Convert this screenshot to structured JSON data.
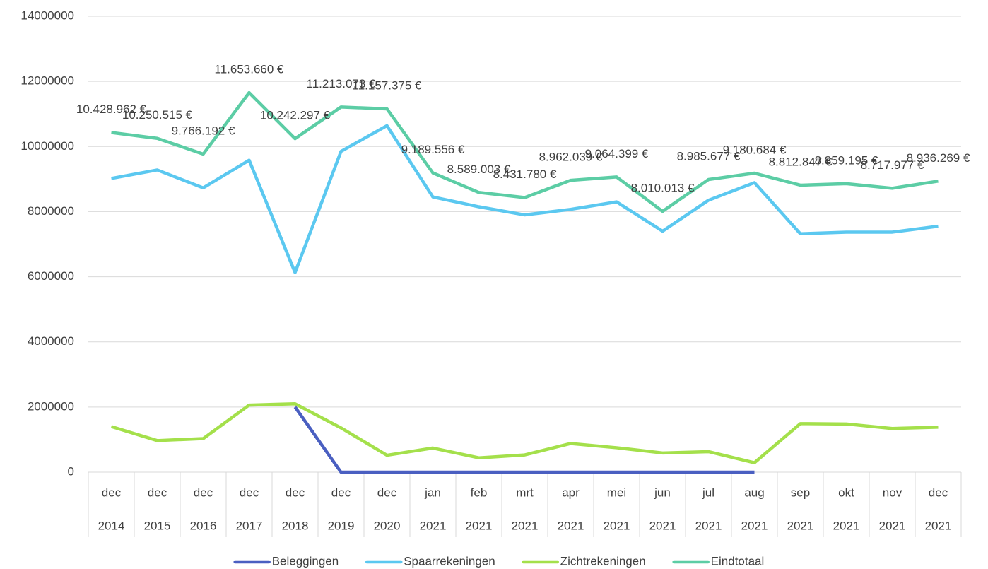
{
  "chart_data": {
    "type": "line",
    "categories": [
      [
        "dec",
        "2014"
      ],
      [
        "dec",
        "2015"
      ],
      [
        "dec",
        "2016"
      ],
      [
        "dec",
        "2017"
      ],
      [
        "dec",
        "2018"
      ],
      [
        "dec",
        "2019"
      ],
      [
        "dec",
        "2020"
      ],
      [
        "jan",
        "2021"
      ],
      [
        "feb",
        "2021"
      ],
      [
        "mrt",
        "2021"
      ],
      [
        "apr",
        "2021"
      ],
      [
        "mei",
        "2021"
      ],
      [
        "jun",
        "2021"
      ],
      [
        "jul",
        "2021"
      ],
      [
        "aug",
        "2021"
      ],
      [
        "sep",
        "2021"
      ],
      [
        "okt",
        "2021"
      ],
      [
        "nov",
        "2021"
      ],
      [
        "dec",
        "2021"
      ]
    ],
    "series": [
      {
        "name": "Beleggingen",
        "color": "#4a5fc1",
        "values": [
          null,
          null,
          null,
          null,
          2000000,
          0,
          0,
          0,
          0,
          0,
          0,
          0,
          0,
          0,
          0,
          null,
          null,
          null,
          null
        ]
      },
      {
        "name": "Spaarrekeningen",
        "color": "#5bc8f0",
        "values": [
          9020000,
          9280000,
          8730000,
          9580000,
          6130000,
          9850000,
          10640000,
          8450000,
          8150000,
          7900000,
          8070000,
          8300000,
          7400000,
          8350000,
          8890000,
          7320000,
          7370000,
          7370000,
          7550000
        ]
      },
      {
        "name": "Zichtrekeningen",
        "color": "#a4e04b",
        "values": [
          1400000,
          970000,
          1030000,
          2060000,
          2100000,
          1360000,
          520000,
          740000,
          440000,
          530000,
          880000,
          750000,
          590000,
          630000,
          290000,
          1490000,
          1480000,
          1340000,
          1380000
        ]
      },
      {
        "name": "Eindtotaal",
        "color": "#5ccda5",
        "values": [
          10428962,
          10250515,
          9766192,
          11653660,
          10242297,
          11213073,
          11157375,
          9189556,
          8589003,
          8431780,
          8962039,
          9064399,
          8010013,
          8985677,
          9180684,
          8812847,
          8859195,
          8717977,
          8936269
        ],
        "value_labels": [
          "10.428.962 €",
          "10.250.515 €",
          "9.766.192 €",
          "11.653.660 €",
          "10.242.297 €",
          "11.213.073 €",
          "11.157.375 €",
          "9.189.556 €",
          "8.589.003 €",
          "8.431.780 €",
          "8.962.039 €",
          "9.064.399 €",
          "8.010.013 €",
          "8.985.677 €",
          "9.180.684 €",
          "8.812.847 €",
          "8.859.195 €",
          "8.717.977 €",
          "8.936.269 €"
        ]
      }
    ],
    "ylim": [
      0,
      14000000
    ],
    "yticks": [
      0,
      2000000,
      4000000,
      6000000,
      8000000,
      10000000,
      12000000,
      14000000
    ],
    "grid": true,
    "legend": "bottom"
  }
}
